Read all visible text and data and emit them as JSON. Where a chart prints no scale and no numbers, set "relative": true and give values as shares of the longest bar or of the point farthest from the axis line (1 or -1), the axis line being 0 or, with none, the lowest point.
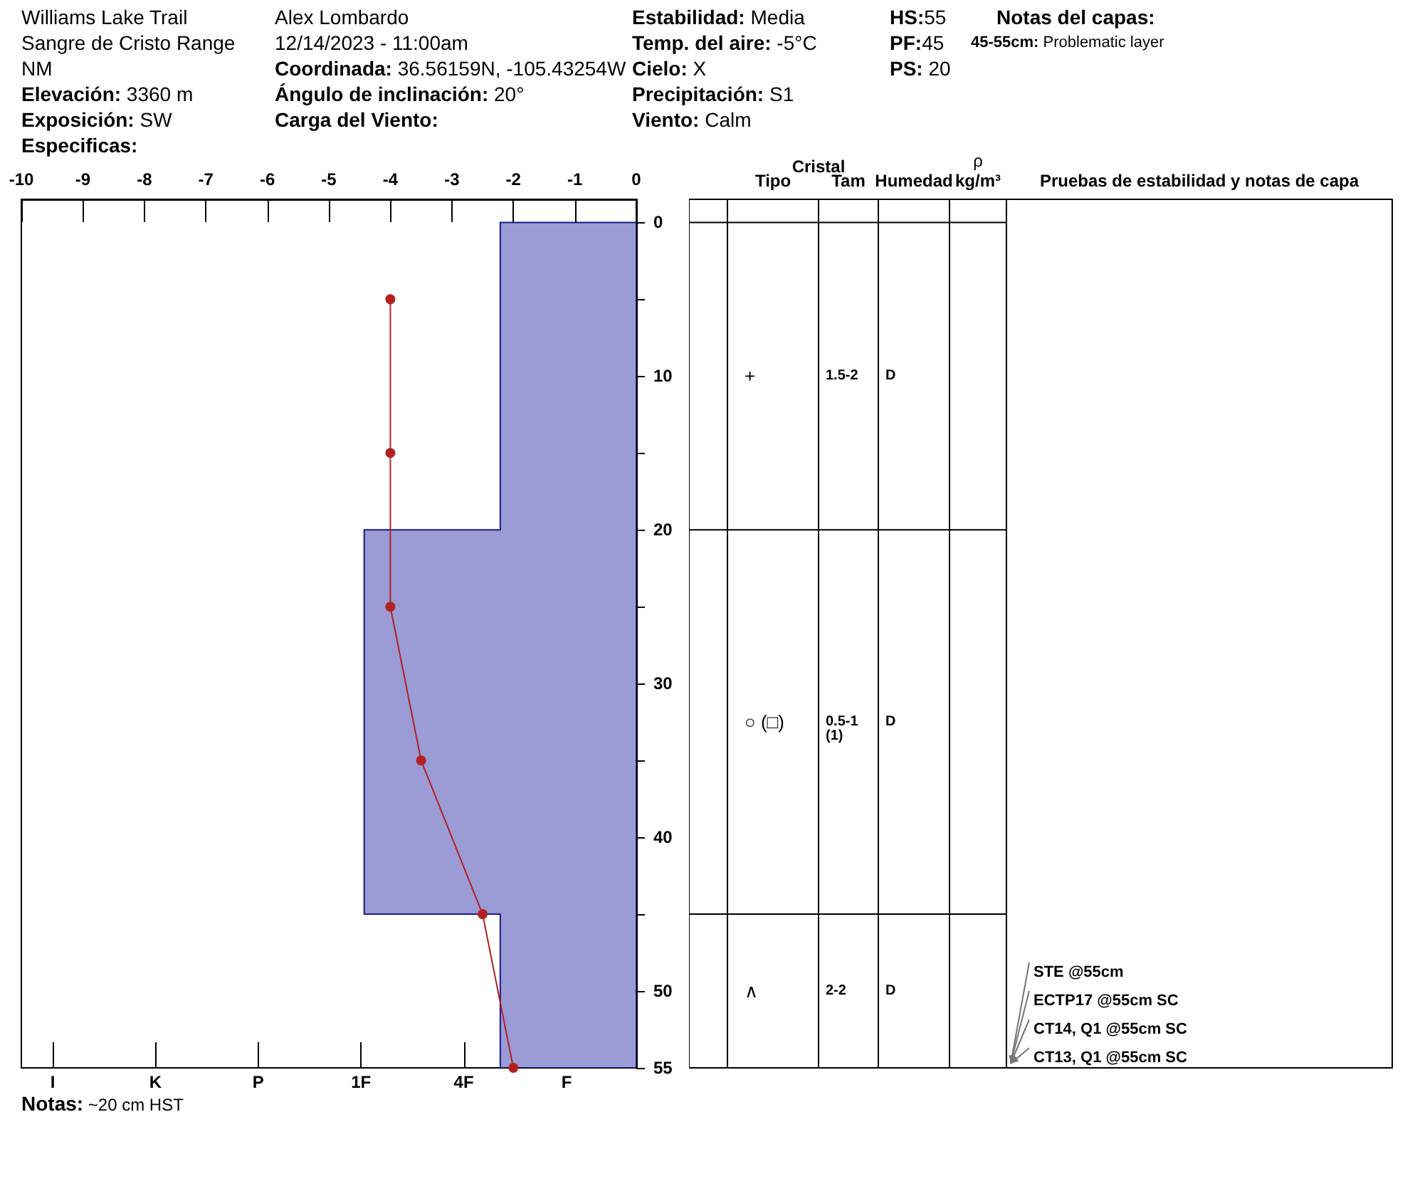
{
  "chart_data": [
    {
      "type": "area",
      "orientation": "horizontal",
      "relative": true,
      "annotations": [
        "Williams Lake Trail",
        "Sangre de Cristo Range",
        "NM",
        "Elevación: 3360 m",
        "Exposición: SW",
        "Especificas:",
        "Alex Lombardo",
        "12/14/2023 - 11:00am",
        "Coordinada: 36.56159N, -105.43254W",
        "Ángulo de inclinación: 20°",
        "Carga del Viento:",
        "Estabilidad: Media",
        "Temp. del aire: -5°C",
        "Cielo: X",
        "Precipitación: S1",
        "Viento: Calm",
        "HS:55",
        "PF:45",
        "PS: 20",
        "Notas del capas:",
        "45-55cm: Problematic layer",
        "Notas: ~20 cm HST",
        "I",
        "K",
        "P",
        "1F",
        "4F",
        "F"
      ],
      "ylim": [
        55,
        -1.5
      ],
      "yticks": [
        0,
        {
          "value": 5,
          "label": null
        },
        10,
        {
          "value": 15,
          "label": null
        },
        20,
        {
          "value": 25,
          "label": null
        },
        30,
        {
          "value": 35,
          "label": null
        },
        40,
        {
          "value": 45,
          "label": null
        },
        50,
        55
      ],
      "series": [
        {
          "color": "#9b9bd6",
          "x": [
            0,
            20,
            20,
            45,
            45,
            55
          ],
          "values": [
            -0.5,
            -0.5,
            -1,
            -1,
            -0.5,
            -0.5
          ]
        }
      ]
    },
    {
      "type": "line",
      "orientation": "horizontal",
      "tick_labels": "x",
      "marker": "circle",
      "ylim": [
        55,
        -1.5
      ],
      "xlim": [
        -10,
        0
      ],
      "xticks": [
        -10,
        -9,
        -8,
        -7,
        -6,
        -5,
        -4,
        -3,
        -2,
        -1,
        0
      ],
      "series": [
        {
          "color": "#b22222",
          "x": [
            5,
            15,
            25,
            35,
            45,
            55
          ],
          "values": [
            -4,
            -4,
            -4,
            -3.5,
            -2.5,
            -2
          ]
        }
      ]
    },
    {
      "type": "other",
      "categories": [
        null,
        "Tipo",
        "Tam",
        "Humedad",
        "kg/m³",
        "Pruebas de estabilidad y notas de capa"
      ],
      "annotations": [
        "Cristal",
        "ρ",
        "+",
        "1.5-2",
        "D",
        "○ (□)",
        "0.5-1\n(1)",
        "D",
        "∧",
        "2-2",
        "D",
        "STE @55cm",
        "ECTP17 @55cm SC",
        "CT14, Q1 @55cm SC",
        "CT13, Q1 @55cm SC"
      ]
    }
  ]
}
